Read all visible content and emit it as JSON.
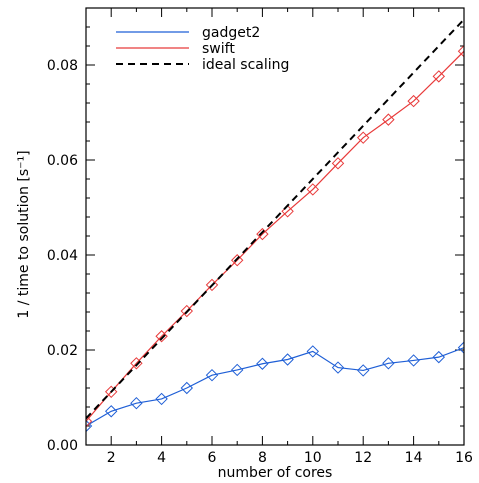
{
  "chart_data": {
    "type": "line",
    "title": "",
    "xlabel": "number of cores",
    "ylabel": "1 / time to solution [s⁻¹]",
    "xlim": [
      1,
      16
    ],
    "ylim": [
      0,
      0.092
    ],
    "xticks": [
      2,
      4,
      6,
      8,
      10,
      12,
      14,
      16
    ],
    "xtick_labels": [
      "2",
      "4",
      "6",
      "8",
      "10",
      "12",
      "14",
      "16"
    ],
    "yticks": [
      0.0,
      0.02,
      0.04,
      0.06,
      0.08
    ],
    "ytick_labels": [
      "0.00",
      "0.02",
      "0.04",
      "0.06",
      "0.08"
    ],
    "grid": false,
    "legend_position": "top-left",
    "x": [
      1,
      2,
      3,
      4,
      5,
      6,
      7,
      8,
      9,
      10,
      11,
      12,
      13,
      14,
      15,
      16
    ],
    "series": [
      {
        "name": "gadget2",
        "color": "#1f5fd6",
        "line_style": "solid",
        "marker": "diamond",
        "values": [
          0.004,
          0.0071,
          0.0088,
          0.0097,
          0.012,
          0.0147,
          0.0158,
          0.0171,
          0.018,
          0.0197,
          0.0163,
          0.0157,
          0.0172,
          0.0178,
          0.0185,
          0.0205
        ]
      },
      {
        "name": "swift",
        "color": "#e83a3a",
        "line_style": "solid",
        "marker": "diamond",
        "values": [
          0.005,
          0.0112,
          0.0172,
          0.0229,
          0.0282,
          0.0337,
          0.0389,
          0.0444,
          0.0492,
          0.0538,
          0.0593,
          0.0647,
          0.0685,
          0.0724,
          0.0776,
          0.0829
        ]
      },
      {
        "name": "ideal scaling",
        "color": "#000000",
        "line_style": "dashed",
        "marker": "none",
        "values": [
          0.0056,
          0.0112,
          0.0168,
          0.0224,
          0.028,
          0.0336,
          0.0392,
          0.0448,
          0.0504,
          0.056,
          0.0616,
          0.0672,
          0.0728,
          0.0784,
          0.084,
          0.0896
        ]
      }
    ]
  }
}
